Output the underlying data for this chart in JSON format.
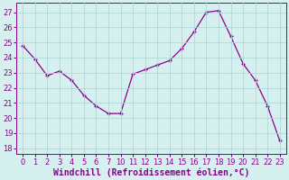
{
  "x_indices": [
    0,
    1,
    2,
    3,
    4,
    5,
    6,
    7,
    8,
    9,
    10,
    11,
    12,
    13,
    14,
    15,
    16,
    17,
    18,
    19,
    20,
    21
  ],
  "x_labels": [
    "0",
    "1",
    "2",
    "3",
    "4",
    "5",
    "6",
    "7",
    "10",
    "11",
    "12",
    "13",
    "14",
    "15",
    "16",
    "17",
    "18",
    "19",
    "20",
    "21",
    "22",
    "23"
  ],
  "y": [
    24.8,
    23.9,
    22.8,
    23.1,
    22.5,
    21.5,
    20.8,
    20.3,
    20.3,
    22.9,
    23.2,
    23.5,
    23.8,
    24.6,
    25.7,
    27.0,
    27.1,
    25.4,
    23.6,
    22.5,
    20.8,
    18.5
  ],
  "line_color": "#8B008B",
  "marker_color": "#8B008B",
  "bg_color": "#d6f0f0",
  "grid_color": "#b0d8d8",
  "xlabel": "Windchill (Refroidissement éolien,°C)",
  "yticks": [
    18,
    19,
    20,
    21,
    22,
    23,
    24,
    25,
    26,
    27
  ],
  "ylim": [
    17.6,
    27.6
  ],
  "xlabel_fontsize": 7.0,
  "tick_fontsize": 6.0,
  "marker_size": 3.5,
  "line_width": 0.9
}
